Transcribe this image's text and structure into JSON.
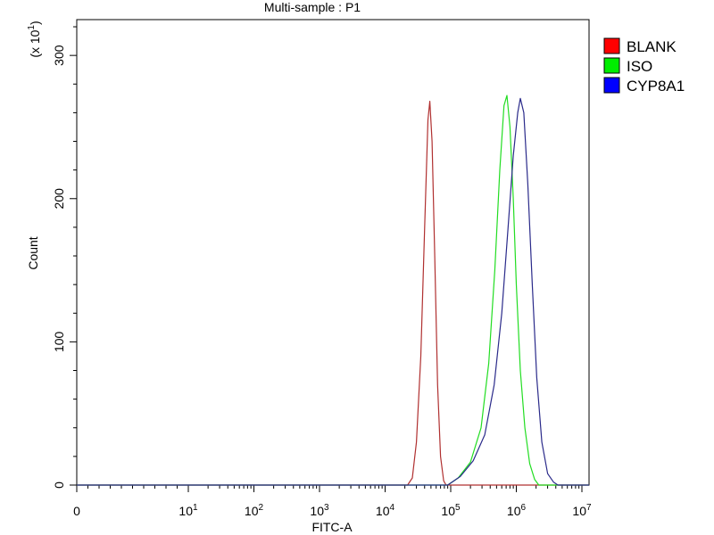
{
  "chart_data": {
    "type": "line",
    "title": "Multi-sample : P1",
    "xlabel": "FITC-A",
    "ylabel": "Count",
    "y_multiplier_label": "(x 10",
    "y_multiplier_exp": "1",
    "y_multiplier_close": ")",
    "x_scale": "biexponential",
    "x_ticks": [
      {
        "value": 0,
        "base": "0",
        "exp": ""
      },
      {
        "value": 10,
        "base": "10",
        "exp": "1"
      },
      {
        "value": 100,
        "base": "10",
        "exp": "2"
      },
      {
        "value": 1000,
        "base": "10",
        "exp": "3"
      },
      {
        "value": 10000,
        "base": "10",
        "exp": "4"
      },
      {
        "value": 100000,
        "base": "10",
        "exp": "5"
      },
      {
        "value": 1000000,
        "base": "10",
        "exp": "6"
      },
      {
        "value": 10000000,
        "base": "10",
        "exp": "7"
      }
    ],
    "ylim": [
      0,
      32.5
    ],
    "y_ticks": [
      {
        "value": 0,
        "label": "0"
      },
      {
        "value": 10,
        "label": "100"
      },
      {
        "value": 20,
        "label": "200"
      },
      {
        "value": 30,
        "label": "300"
      }
    ],
    "grid": false,
    "legend_position": "right",
    "series": [
      {
        "name": "BLANK",
        "color": "#b03030",
        "legend_color": "#ff0000",
        "points": [
          [
            22000,
            0
          ],
          [
            26000,
            0.5
          ],
          [
            30000,
            3
          ],
          [
            35000,
            9
          ],
          [
            40000,
            18
          ],
          [
            45000,
            25.5
          ],
          [
            48000,
            26.8
          ],
          [
            52000,
            24
          ],
          [
            57000,
            16
          ],
          [
            63000,
            7
          ],
          [
            70000,
            2
          ],
          [
            78000,
            0.3
          ],
          [
            85000,
            0
          ]
        ]
      },
      {
        "name": "ISO",
        "color": "#22dd22",
        "legend_color": "#00ee00",
        "points": [
          [
            90000,
            0
          ],
          [
            130000,
            0.5
          ],
          [
            200000,
            1.6
          ],
          [
            290000,
            4
          ],
          [
            380000,
            8.5
          ],
          [
            470000,
            15
          ],
          [
            560000,
            22
          ],
          [
            650000,
            26.5
          ],
          [
            720000,
            27.2
          ],
          [
            800000,
            25
          ],
          [
            900000,
            20
          ],
          [
            1000000,
            14
          ],
          [
            1150000,
            8
          ],
          [
            1350000,
            4
          ],
          [
            1600000,
            1.5
          ],
          [
            1900000,
            0.4
          ],
          [
            2200000,
            0
          ]
        ]
      },
      {
        "name": "CYP8A1",
        "color": "#2a2a8a",
        "legend_color": "#0000ff",
        "points": [
          [
            90000,
            0
          ],
          [
            140000,
            0.6
          ],
          [
            220000,
            1.7
          ],
          [
            330000,
            3.5
          ],
          [
            460000,
            7
          ],
          [
            600000,
            12
          ],
          [
            750000,
            18
          ],
          [
            900000,
            23
          ],
          [
            1050000,
            26
          ],
          [
            1150000,
            27
          ],
          [
            1300000,
            26
          ],
          [
            1500000,
            21
          ],
          [
            1750000,
            14
          ],
          [
            2050000,
            7.5
          ],
          [
            2450000,
            3
          ],
          [
            3000000,
            0.8
          ],
          [
            3700000,
            0.2
          ],
          [
            4300000,
            0
          ]
        ]
      }
    ]
  }
}
